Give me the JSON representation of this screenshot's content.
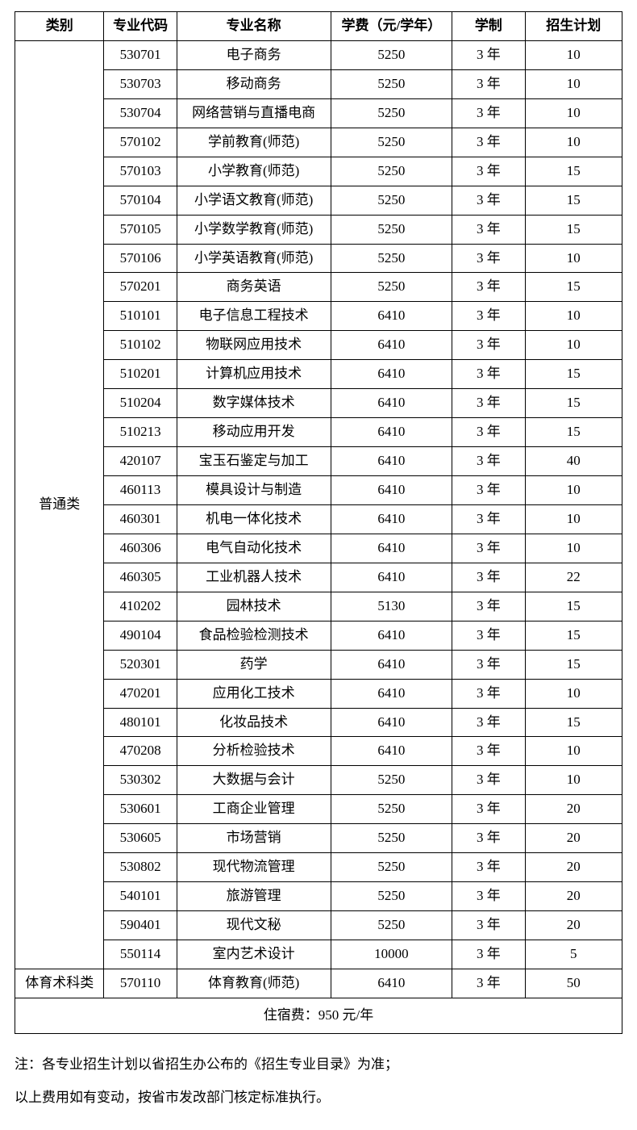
{
  "headers": {
    "category": "类别",
    "code": "专业代码",
    "name": "专业名称",
    "fee": "学费（元/学年）",
    "duration": "学制",
    "plan": "招生计划"
  },
  "categories": [
    {
      "label": "普通类",
      "rows": [
        {
          "code": "530701",
          "name": "电子商务",
          "fee": "5250",
          "duration": "3 年",
          "plan": "10"
        },
        {
          "code": "530703",
          "name": "移动商务",
          "fee": "5250",
          "duration": "3 年",
          "plan": "10"
        },
        {
          "code": "530704",
          "name": "网络营销与直播电商",
          "fee": "5250",
          "duration": "3 年",
          "plan": "10"
        },
        {
          "code": "570102",
          "name": "学前教育(师范)",
          "fee": "5250",
          "duration": "3 年",
          "plan": "10"
        },
        {
          "code": "570103",
          "name": "小学教育(师范)",
          "fee": "5250",
          "duration": "3 年",
          "plan": "15"
        },
        {
          "code": "570104",
          "name": "小学语文教育(师范)",
          "fee": "5250",
          "duration": "3 年",
          "plan": "15"
        },
        {
          "code": "570105",
          "name": "小学数学教育(师范)",
          "fee": "5250",
          "duration": "3 年",
          "plan": "15"
        },
        {
          "code": "570106",
          "name": "小学英语教育(师范)",
          "fee": "5250",
          "duration": "3 年",
          "plan": "10"
        },
        {
          "code": "570201",
          "name": "商务英语",
          "fee": "5250",
          "duration": "3 年",
          "plan": "15"
        },
        {
          "code": "510101",
          "name": "电子信息工程技术",
          "fee": "6410",
          "duration": "3 年",
          "plan": "10"
        },
        {
          "code": "510102",
          "name": "物联网应用技术",
          "fee": "6410",
          "duration": "3 年",
          "plan": "10"
        },
        {
          "code": "510201",
          "name": "计算机应用技术",
          "fee": "6410",
          "duration": "3 年",
          "plan": "15"
        },
        {
          "code": "510204",
          "name": "数字媒体技术",
          "fee": "6410",
          "duration": "3 年",
          "plan": "15"
        },
        {
          "code": "510213",
          "name": "移动应用开发",
          "fee": "6410",
          "duration": "3 年",
          "plan": "15"
        },
        {
          "code": "420107",
          "name": "宝玉石鉴定与加工",
          "fee": "6410",
          "duration": "3 年",
          "plan": "40"
        },
        {
          "code": "460113",
          "name": "模具设计与制造",
          "fee": "6410",
          "duration": "3 年",
          "plan": "10"
        },
        {
          "code": "460301",
          "name": "机电一体化技术",
          "fee": "6410",
          "duration": "3 年",
          "plan": "10"
        },
        {
          "code": "460306",
          "name": "电气自动化技术",
          "fee": "6410",
          "duration": "3 年",
          "plan": "10"
        },
        {
          "code": "460305",
          "name": "工业机器人技术",
          "fee": "6410",
          "duration": "3 年",
          "plan": "22"
        },
        {
          "code": "410202",
          "name": "园林技术",
          "fee": "5130",
          "duration": "3 年",
          "plan": "15"
        },
        {
          "code": "490104",
          "name": "食品检验检测技术",
          "fee": "6410",
          "duration": "3 年",
          "plan": "15"
        },
        {
          "code": "520301",
          "name": "药学",
          "fee": "6410",
          "duration": "3 年",
          "plan": "15"
        },
        {
          "code": "470201",
          "name": "应用化工技术",
          "fee": "6410",
          "duration": "3 年",
          "plan": "10"
        },
        {
          "code": "480101",
          "name": "化妆品技术",
          "fee": "6410",
          "duration": "3 年",
          "plan": "15"
        },
        {
          "code": "470208",
          "name": "分析检验技术",
          "fee": "6410",
          "duration": "3 年",
          "plan": "10"
        },
        {
          "code": "530302",
          "name": "大数据与会计",
          "fee": "5250",
          "duration": "3 年",
          "plan": "10"
        },
        {
          "code": "530601",
          "name": "工商企业管理",
          "fee": "5250",
          "duration": "3 年",
          "plan": "20"
        },
        {
          "code": "530605",
          "name": "市场营销",
          "fee": "5250",
          "duration": "3 年",
          "plan": "20"
        },
        {
          "code": "530802",
          "name": "现代物流管理",
          "fee": "5250",
          "duration": "3 年",
          "plan": "20"
        },
        {
          "code": "540101",
          "name": "旅游管理",
          "fee": "5250",
          "duration": "3 年",
          "plan": "20"
        },
        {
          "code": "590401",
          "name": "现代文秘",
          "fee": "5250",
          "duration": "3 年",
          "plan": "20"
        },
        {
          "code": "550114",
          "name": "室内艺术设计",
          "fee": "10000",
          "duration": "3 年",
          "plan": "5"
        }
      ]
    },
    {
      "label": "体育术科类",
      "rows": [
        {
          "code": "570110",
          "name": "体育教育(师范)",
          "fee": "6410",
          "duration": "3 年",
          "plan": "50"
        }
      ]
    }
  ],
  "footer_row": "住宿费：950 元/年",
  "notes": [
    "注：各专业招生计划以省招生办公布的《招生专业目录》为准；",
    "以上费用如有变动，按省市发改部门核定标准执行。"
  ]
}
